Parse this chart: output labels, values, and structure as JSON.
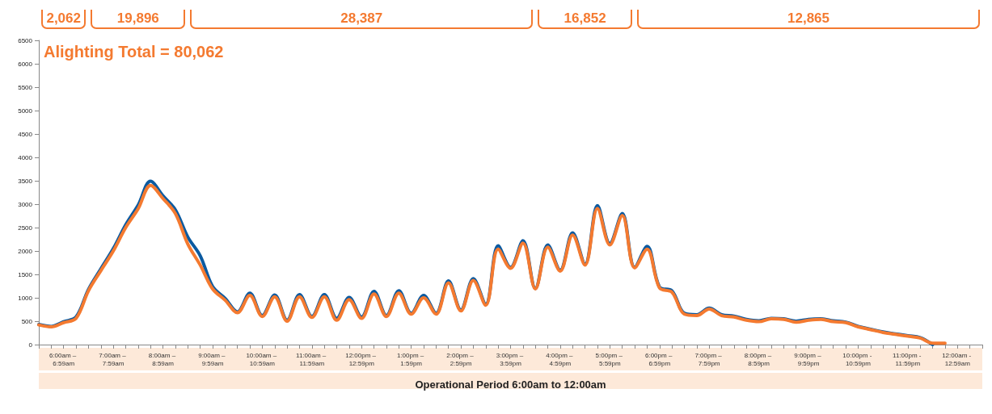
{
  "chart_data": {
    "type": "line",
    "annotations": [
      "Alighting Total = 80,062",
      "2,062",
      "19,896",
      "28,387",
      "16,852",
      "12,865"
    ],
    "xlabel": "Operational Period 6:00am to 12:00am",
    "categories": [
      null,
      null,
      "6:00am – 6:59am",
      null,
      null,
      null,
      "7:00am – 7:59am",
      null,
      null,
      null,
      "8:00am – 8:59am",
      null,
      null,
      null,
      "9:00am – 9:59am",
      null,
      null,
      null,
      "10:00am – 10:59am",
      null,
      null,
      null,
      "11:00am – 11:59am",
      null,
      null,
      null,
      "12:00pm – 12:59pm",
      null,
      null,
      null,
      "1:00pm – 1:59pm",
      null,
      null,
      null,
      "2:00pm – 2:59pm",
      null,
      null,
      null,
      "3:00pm – 3:59pm",
      null,
      null,
      null,
      "4:00pm – 4:59pm",
      null,
      null,
      null,
      "5:00pm – 5:59pm",
      null,
      null,
      null,
      "6:00pm – 6:59pm",
      null,
      null,
      null,
      "7:00pm – 7:59pm",
      null,
      null,
      null,
      "8:00pm – 8:59pm",
      null,
      null,
      null,
      "9:00pm – 9:59pm",
      null,
      null,
      null,
      "10:00pm - 10:59pm",
      null,
      null,
      null,
      "11:00pm - 11:59pm",
      null,
      null,
      null,
      "12:00am - 12:59am",
      null,
      null
    ],
    "series": [
      {
        "color": "#0b5aa0",
        "values": [
          430,
          390,
          490,
          590,
          1180,
          1620,
          2050,
          2560,
          2980,
          3490,
          3180,
          2880,
          2300,
          1900,
          1240,
          990,
          700,
          1100,
          620,
          1060,
          520,
          1070,
          600,
          1070,
          560,
          1010,
          590,
          1140,
          620,
          1150,
          670,
          1050,
          670,
          1360,
          740,
          1410,
          860,
          2110,
          1650,
          2220,
          1200,
          2130,
          1590,
          2390,
          1720,
          2970,
          2160,
          2800,
          1650,
          2100,
          1230,
          1150,
          670,
          640,
          780,
          640,
          610,
          540,
          510,
          560,
          550,
          500,
          540,
          550,
          510,
          480,
          390,
          330,
          270,
          230,
          190,
          150,
          0,
          null,
          null,
          null,
          null
        ]
      },
      {
        "color": "#f47a30",
        "values": [
          420,
          380,
          470,
          560,
          1150,
          1580,
          2000,
          2500,
          2900,
          3400,
          3120,
          2800,
          2150,
          1700,
          1190,
          950,
          680,
          1050,
          600,
          1020,
          500,
          1020,
          580,
          1020,
          520,
          960,
          560,
          1080,
          600,
          1100,
          650,
          1000,
          650,
          1320,
          720,
          1370,
          840,
          2040,
          1630,
          2170,
          1190,
          2080,
          1570,
          2340,
          1700,
          2910,
          2130,
          2760,
          1640,
          2040,
          1210,
          1120,
          650,
          620,
          760,
          620,
          590,
          520,
          490,
          550,
          540,
          480,
          520,
          540,
          490,
          470,
          380,
          320,
          260,
          220,
          180,
          140,
          30,
          30,
          null,
          null,
          null
        ]
      }
    ],
    "ylim": [
      0,
      6500
    ],
    "yticks": [
      0,
      500,
      1000,
      1500,
      2000,
      2500,
      3000,
      3500,
      4000,
      4500,
      5000,
      5500,
      6000,
      6500
    ],
    "grid": false
  }
}
